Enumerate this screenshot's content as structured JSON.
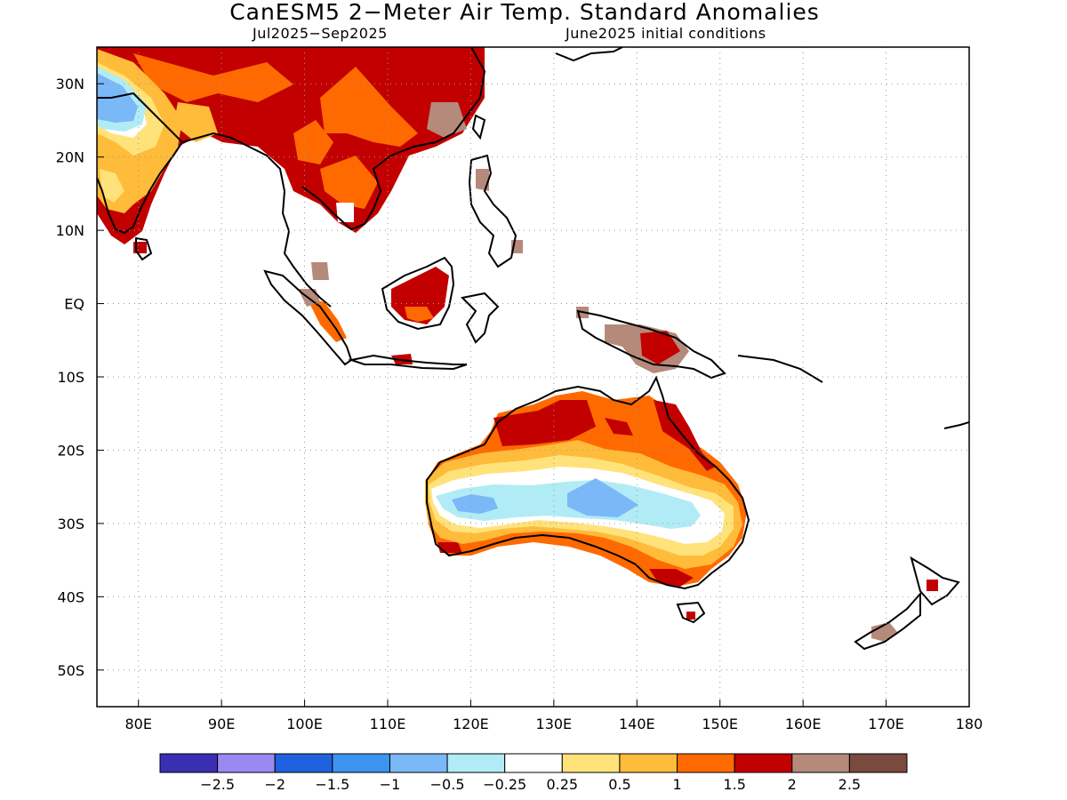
{
  "title": "CanESM5 2−Meter Air Temp. Standard Anomalies",
  "subtitle_left": "Jul2025−Sep2025",
  "subtitle_right": "June2025 initial conditions",
  "map": {
    "lon_range": [
      75,
      180
    ],
    "lat_range": [
      -55,
      35
    ],
    "lat_ticks": [
      {
        "value": 30,
        "label": "30N"
      },
      {
        "value": 20,
        "label": "20N"
      },
      {
        "value": 10,
        "label": "10N"
      },
      {
        "value": 0,
        "label": "EQ"
      },
      {
        "value": -10,
        "label": "10S"
      },
      {
        "value": -20,
        "label": "20S"
      },
      {
        "value": -30,
        "label": "30S"
      },
      {
        "value": -40,
        "label": "40S"
      },
      {
        "value": -50,
        "label": "50S"
      }
    ],
    "lon_ticks": [
      {
        "value": 80,
        "label": "80E"
      },
      {
        "value": 90,
        "label": "90E"
      },
      {
        "value": 100,
        "label": "100E"
      },
      {
        "value": 110,
        "label": "110E"
      },
      {
        "value": 120,
        "label": "120E"
      },
      {
        "value": 130,
        "label": "130E"
      },
      {
        "value": 140,
        "label": "140E"
      },
      {
        "value": 150,
        "label": "150E"
      },
      {
        "value": 160,
        "label": "160E"
      },
      {
        "value": 170,
        "label": "170E"
      },
      {
        "value": 180,
        "label": "180"
      }
    ],
    "grid": "dotted"
  },
  "colorbar": {
    "colors": [
      "#3a2fb3",
      "#9b89f2",
      "#1f62e0",
      "#3d94f0",
      "#7ab8f7",
      "#b1ecf6",
      "#ffffff",
      "#ffe27a",
      "#ffbb3a",
      "#ff6a00",
      "#c20000",
      "#b58a7b",
      "#7a4a3e"
    ],
    "labels": [
      "−2.5",
      "−2",
      "−1.5",
      "−1",
      "−0.5",
      "−0.25",
      "0.25",
      "0.5",
      "1",
      "1.5",
      "2",
      "2.5"
    ]
  }
}
